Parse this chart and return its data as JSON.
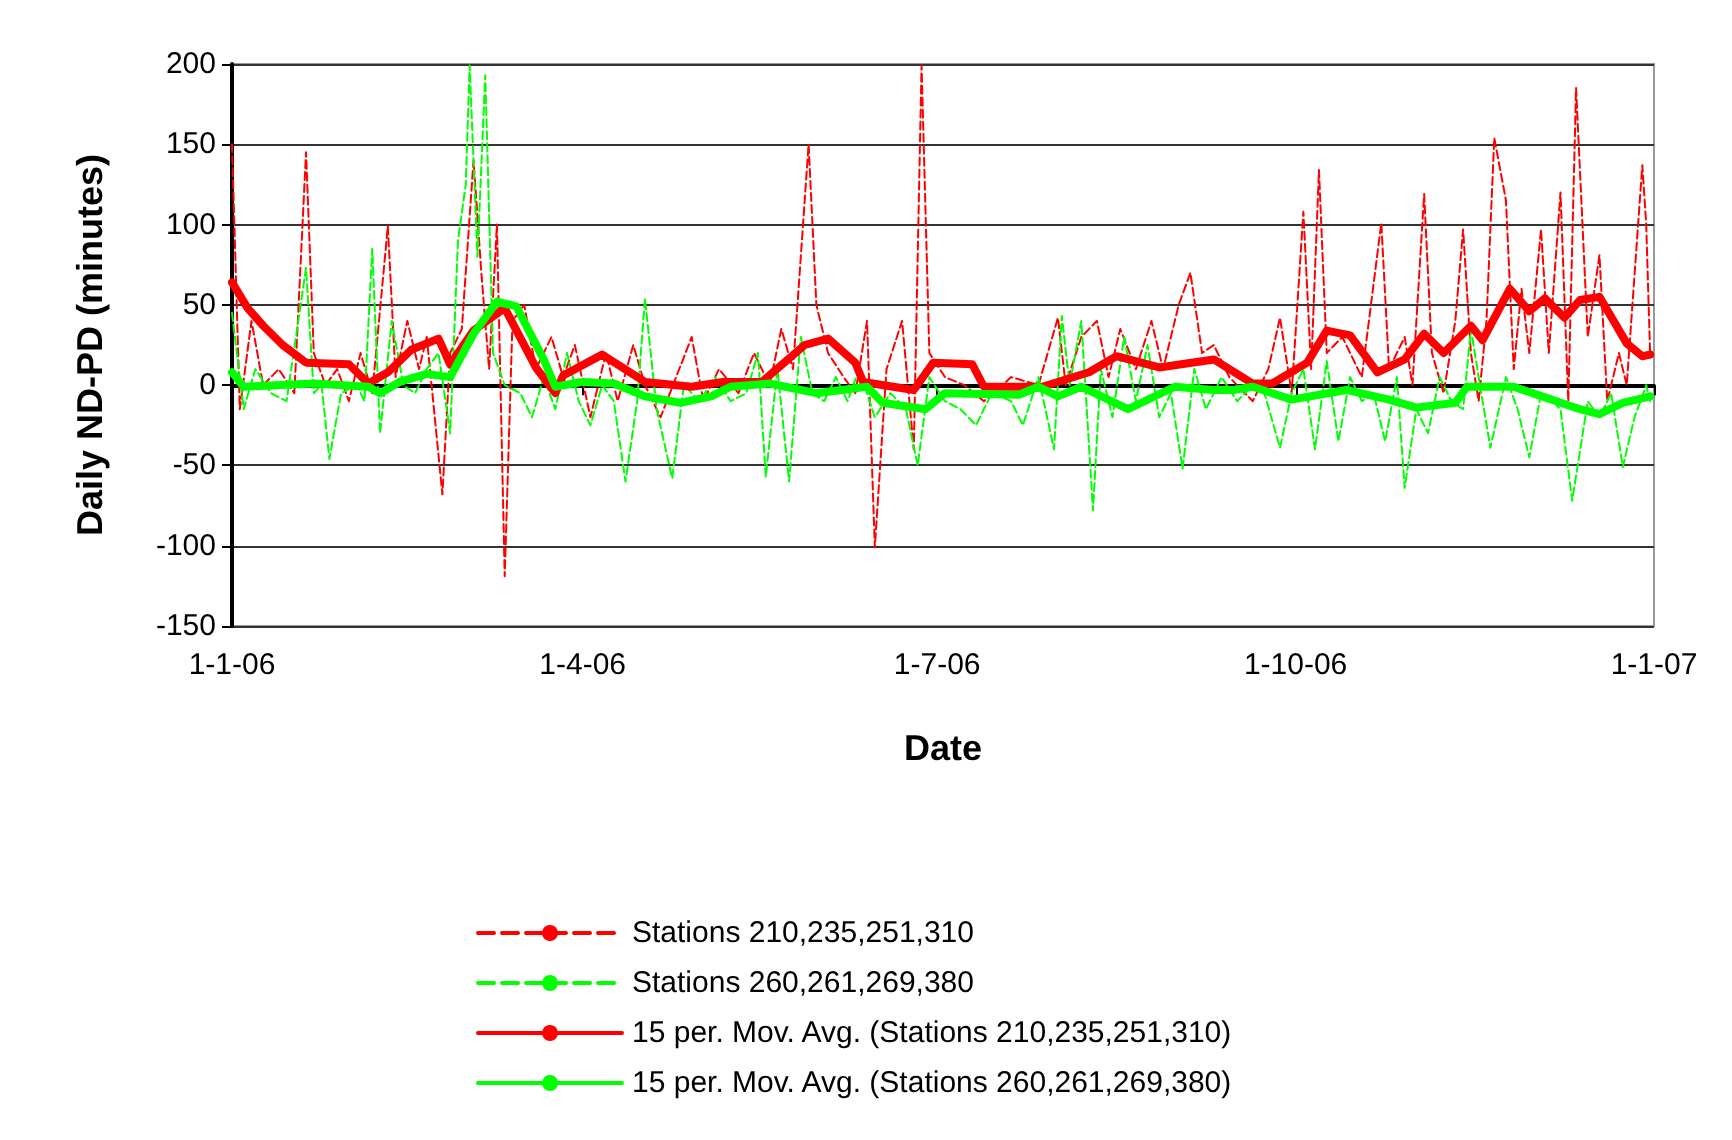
{
  "chart_data": {
    "type": "line",
    "xlabel": "Date",
    "ylabel": "Daily ND-PD (minutes)",
    "xlim": [
      "2006-01-01",
      "2007-01-01"
    ],
    "xticks": [
      {
        "value": "2006-01-01",
        "label": "1-1-06"
      },
      {
        "value": "2006-04-01",
        "label": "1-4-06"
      },
      {
        "value": "2006-07-01",
        "label": "1-7-06"
      },
      {
        "value": "2006-10-01",
        "label": "1-10-06"
      },
      {
        "value": "2007-01-01",
        "label": "1-1-07"
      }
    ],
    "ylim": [
      -150,
      200
    ],
    "yticks": [
      -150,
      -100,
      -50,
      0,
      50,
      100,
      150,
      200
    ],
    "grid": "y",
    "legend": "bottom",
    "marker": "none",
    "series": [
      {
        "name": "Stations 210,235,251,310",
        "color": "#ff0000",
        "line_style": "dashed",
        "x": [
          "2006-01-01",
          "2006-01-03",
          "2006-01-06",
          "2006-01-09",
          "2006-01-13",
          "2006-01-17",
          "2006-01-20",
          "2006-01-22",
          "2006-01-25",
          "2006-01-28",
          "2006-01-31",
          "2006-02-03",
          "2006-02-06",
          "2006-02-10",
          "2006-02-12",
          "2006-02-15",
          "2006-02-18",
          "2006-02-20",
          "2006-02-24",
          "2006-02-26",
          "2006-03-01",
          "2006-03-04",
          "2006-03-06",
          "2006-03-08",
          "2006-03-10",
          "2006-03-12",
          "2006-03-14",
          "2006-03-17",
          "2006-03-20",
          "2006-03-24",
          "2006-03-27",
          "2006-03-30",
          "2006-04-03",
          "2006-04-07",
          "2006-04-10",
          "2006-04-14",
          "2006-04-17",
          "2006-04-21",
          "2006-04-25",
          "2006-04-29",
          "2006-05-02",
          "2006-05-06",
          "2006-05-11",
          "2006-05-15",
          "2006-05-19",
          "2006-05-22",
          "2006-05-25",
          "2006-05-29",
          "2006-05-31",
          "2006-06-03",
          "2006-06-07",
          "2006-06-10",
          "2006-06-13",
          "2006-06-15",
          "2006-06-18",
          "2006-06-22",
          "2006-06-25",
          "2006-06-27",
          "2006-06-29",
          "2006-07-03",
          "2006-07-08",
          "2006-07-13",
          "2006-07-20",
          "2006-07-27",
          "2006-08-01",
          "2006-08-03",
          "2006-08-07",
          "2006-08-11",
          "2006-08-14",
          "2006-08-17",
          "2006-08-21",
          "2006-08-25",
          "2006-08-28",
          "2006-09-01",
          "2006-09-04",
          "2006-09-07",
          "2006-09-10",
          "2006-09-14",
          "2006-09-20",
          "2006-09-24",
          "2006-09-27",
          "2006-09-30",
          "2006-10-03",
          "2006-10-05",
          "2006-10-07",
          "2006-10-09",
          "2006-10-13",
          "2006-10-18",
          "2006-10-23",
          "2006-10-25",
          "2006-10-29",
          "2006-10-31",
          "2006-11-03",
          "2006-11-05",
          "2006-11-08",
          "2006-11-11",
          "2006-11-13",
          "2006-11-15",
          "2006-11-17",
          "2006-11-19",
          "2006-11-21",
          "2006-11-24",
          "2006-11-26",
          "2006-11-28",
          "2006-11-30",
          "2006-12-03",
          "2006-12-05",
          "2006-12-08",
          "2006-12-10",
          "2006-12-12",
          "2006-12-15",
          "2006-12-18",
          "2006-12-20",
          "2006-12-23",
          "2006-12-25",
          "2006-12-29",
          "2006-12-30",
          "2006-12-31"
        ],
        "values": [
          150,
          -15,
          40,
          0,
          10,
          -5,
          145,
          20,
          0,
          10,
          -10,
          20,
          -5,
          99,
          5,
          40,
          10,
          30,
          -68,
          20,
          35,
          140,
          70,
          10,
          100,
          -119,
          40,
          50,
          10,
          30,
          5,
          25,
          -20,
          20,
          -10,
          25,
          0,
          -20,
          5,
          30,
          -10,
          10,
          -5,
          20,
          0,
          35,
          10,
          150,
          50,
          20,
          5,
          -5,
          40,
          -101,
          10,
          40,
          -40,
          199,
          20,
          5,
          0,
          -10,
          5,
          0,
          42,
          0,
          30,
          40,
          5,
          35,
          10,
          40,
          10,
          50,
          70,
          20,
          25,
          5,
          -10,
          10,
          42,
          -5,
          108,
          10,
          134,
          20,
          30,
          5,
          101,
          10,
          30,
          0,
          119,
          20,
          -5,
          40,
          97,
          20,
          -10,
          40,
          154,
          115,
          10,
          60,
          20,
          97,
          20,
          120,
          -10,
          185,
          30,
          81,
          -10,
          20,
          0,
          137,
          100,
          20
        ]
      },
      {
        "name": "Stations 260,261,269,380",
        "color": "#00ff00",
        "line_style": "dashed",
        "x": [
          "2006-01-01",
          "2006-01-04",
          "2006-01-07",
          "2006-01-11",
          "2006-01-15",
          "2006-01-20",
          "2006-01-22",
          "2006-01-24",
          "2006-01-26",
          "2006-01-29",
          "2006-02-02",
          "2006-02-04",
          "2006-02-06",
          "2006-02-08",
          "2006-02-11",
          "2006-02-14",
          "2006-02-17",
          "2006-02-20",
          "2006-02-23",
          "2006-02-26",
          "2006-02-28",
          "2006-03-02",
          "2006-03-03",
          "2006-03-05",
          "2006-03-07",
          "2006-03-09",
          "2006-03-12",
          "2006-03-16",
          "2006-03-19",
          "2006-03-22",
          "2006-03-25",
          "2006-03-28",
          "2006-03-31",
          "2006-04-03",
          "2006-04-06",
          "2006-04-09",
          "2006-04-12",
          "2006-04-15",
          "2006-04-17",
          "2006-04-20",
          "2006-04-24",
          "2006-04-27",
          "2006-05-01",
          "2006-05-05",
          "2006-05-09",
          "2006-05-13",
          "2006-05-16",
          "2006-05-18",
          "2006-05-21",
          "2006-05-24",
          "2006-05-27",
          "2006-05-30",
          "2006-06-02",
          "2006-06-05",
          "2006-06-08",
          "2006-06-11",
          "2006-06-15",
          "2006-06-19",
          "2006-06-23",
          "2006-06-26",
          "2006-06-29",
          "2006-07-03",
          "2006-07-07",
          "2006-07-11",
          "2006-07-15",
          "2006-07-20",
          "2006-07-23",
          "2006-07-27",
          "2006-07-31",
          "2006-08-02",
          "2006-08-04",
          "2006-08-07",
          "2006-08-10",
          "2006-08-12",
          "2006-08-15",
          "2006-08-18",
          "2006-08-21",
          "2006-08-24",
          "2006-08-27",
          "2006-08-30",
          "2006-09-02",
          "2006-09-05",
          "2006-09-08",
          "2006-09-12",
          "2006-09-16",
          "2006-09-20",
          "2006-09-23",
          "2006-09-27",
          "2006-09-30",
          "2006-10-03",
          "2006-10-06",
          "2006-10-09",
          "2006-10-12",
          "2006-10-15",
          "2006-10-18",
          "2006-10-21",
          "2006-10-24",
          "2006-10-27",
          "2006-10-29",
          "2006-11-01",
          "2006-11-04",
          "2006-11-07",
          "2006-11-10",
          "2006-11-13",
          "2006-11-15",
          "2006-11-18",
          "2006-11-20",
          "2006-11-24",
          "2006-11-27",
          "2006-11-30",
          "2006-12-03",
          "2006-12-06",
          "2006-12-08",
          "2006-12-11",
          "2006-12-15",
          "2006-12-18",
          "2006-12-21",
          "2006-12-24",
          "2006-12-27",
          "2006-12-30",
          "2006-12-31"
        ],
        "values": [
          45,
          -15,
          10,
          -5,
          -10,
          73,
          -5,
          0,
          -46,
          -5,
          0,
          -10,
          85,
          -30,
          40,
          0,
          -5,
          10,
          20,
          -30,
          90,
          125,
          199,
          80,
          193,
          20,
          0,
          -5,
          -20,
          5,
          -15,
          20,
          -10,
          -25,
          0,
          -10,
          -60,
          -10,
          54,
          -15,
          -58,
          0,
          -10,
          5,
          -10,
          -5,
          20,
          -57,
          10,
          -60,
          30,
          -5,
          -10,
          5,
          -10,
          10,
          -20,
          -5,
          -15,
          -50,
          5,
          -10,
          -15,
          -25,
          -5,
          -10,
          -25,
          5,
          -40,
          43,
          0,
          40,
          -78,
          10,
          -20,
          30,
          -10,
          25,
          -20,
          -5,
          -52,
          10,
          -15,
          5,
          -10,
          0,
          -5,
          -39,
          -5,
          10,
          -40,
          15,
          -35,
          5,
          -10,
          -5,
          -35,
          5,
          -64,
          -15,
          -30,
          5,
          -10,
          -15,
          35,
          -10,
          -39,
          5,
          -15,
          -45,
          -5,
          -10,
          -15,
          -72,
          -10,
          -20,
          -5,
          -51,
          -20,
          0,
          -10
        ]
      },
      {
        "name": "15 per. Mov. Avg. (Stations 210,235,251,310)",
        "color": "#ff0000",
        "line_style": "solid",
        "x": [
          "2006-01-01",
          "2006-01-05",
          "2006-01-09",
          "2006-01-14",
          "2006-01-20",
          "2006-01-31",
          "2006-02-05",
          "2006-02-10",
          "2006-02-16",
          "2006-02-23",
          "2006-02-26",
          "2006-03-04",
          "2006-03-12",
          "2006-03-20",
          "2006-03-25",
          "2006-03-27",
          "2006-04-06",
          "2006-04-17",
          "2006-04-29",
          "2006-05-07",
          "2006-05-17",
          "2006-05-28",
          "2006-06-03",
          "2006-06-10",
          "2006-06-12",
          "2006-06-25",
          "2006-06-30",
          "2006-07-10",
          "2006-07-13",
          "2006-07-28",
          "2006-08-09",
          "2006-08-16",
          "2006-08-27",
          "2006-09-10",
          "2006-09-20",
          "2006-09-25",
          "2006-10-04",
          "2006-10-09",
          "2006-10-15",
          "2006-10-22",
          "2006-10-29",
          "2006-11-03",
          "2006-11-08",
          "2006-11-15",
          "2006-11-18",
          "2006-11-25",
          "2006-11-30",
          "2006-12-04",
          "2006-12-09",
          "2006-12-13",
          "2006-12-18",
          "2006-12-25",
          "2006-12-29",
          "2006-12-31"
        ],
        "values": [
          64,
          48,
          37,
          25,
          14,
          13,
          1,
          8,
          22,
          29,
          13,
          34,
          48,
          11,
          -5,
          6,
          19,
          2,
          -1,
          2,
          2,
          25,
          29,
          14,
          2,
          -3,
          14,
          13,
          -1,
          -1,
          8,
          18,
          11,
          16,
          1,
          1,
          14,
          34,
          31,
          8,
          16,
          32,
          20,
          37,
          28,
          60,
          46,
          54,
          42,
          53,
          55,
          26,
          18,
          19
        ]
      },
      {
        "name": "15 per. Mov. Avg. (Stations 260,261,269,380)",
        "color": "#00ff00",
        "line_style": "solid",
        "x": [
          "2006-01-01",
          "2006-01-04",
          "2006-01-22",
          "2006-02-05",
          "2006-02-08",
          "2006-02-13",
          "2006-02-20",
          "2006-02-26",
          "2006-03-04",
          "2006-03-10",
          "2006-03-15",
          "2006-03-22",
          "2006-03-25",
          "2006-04-01",
          "2006-04-09",
          "2006-04-17",
          "2006-04-26",
          "2006-05-04",
          "2006-05-09",
          "2006-05-19",
          "2006-05-31",
          "2006-06-13",
          "2006-06-17",
          "2006-06-28",
          "2006-07-03",
          "2006-07-22",
          "2006-07-27",
          "2006-08-01",
          "2006-08-07",
          "2006-08-19",
          "2006-08-31",
          "2006-09-10",
          "2006-09-15",
          "2006-09-20",
          "2006-09-30",
          "2006-10-14",
          "2006-10-25",
          "2006-11-01",
          "2006-11-11",
          "2006-11-14",
          "2006-11-26",
          "2006-12-13",
          "2006-12-18",
          "2006-12-24",
          "2006-12-31"
        ],
        "values": [
          8,
          -1,
          1,
          -1,
          -5,
          2,
          7,
          5,
          32,
          52,
          49,
          16,
          -1,
          2,
          1,
          -7,
          -11,
          -7,
          -1,
          1,
          -5,
          -1,
          -11,
          -15,
          -5,
          -6,
          -1,
          -7,
          -1,
          -15,
          -1,
          -3,
          -3,
          -1,
          -9,
          -3,
          -9,
          -14,
          -11,
          -1,
          -1,
          -15,
          -18,
          -11,
          -7
        ]
      }
    ]
  }
}
